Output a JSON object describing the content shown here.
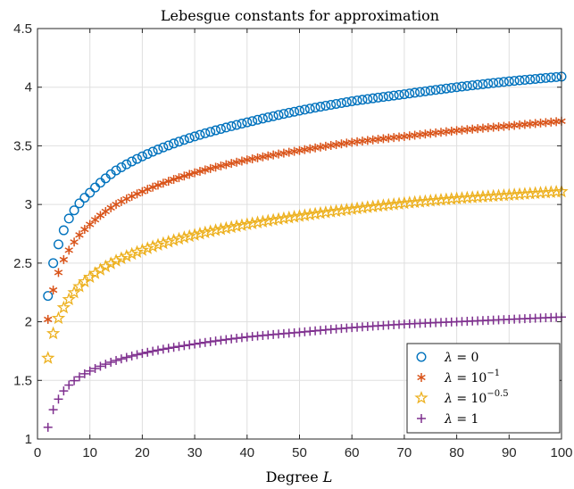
{
  "chart_data": {
    "type": "scatter",
    "title": "Lebesgue constants for approximation",
    "xlabel_prefix": "Degree ",
    "xlabel_var": "L",
    "ylabel": "",
    "xlim": [
      0,
      100
    ],
    "ylim": [
      1,
      4.5
    ],
    "xticks": [
      0,
      10,
      20,
      30,
      40,
      50,
      60,
      70,
      80,
      90,
      100
    ],
    "yticks": [
      1,
      1.5,
      2,
      2.5,
      3,
      3.5,
      4,
      4.5
    ],
    "ytick_labels": [
      "1",
      "1.5",
      "2",
      "2.5",
      "3",
      "3.5",
      "4",
      "4.5"
    ],
    "grid": true,
    "legend_position": "lower-right",
    "x_start": 2,
    "x_end": 100,
    "x_step": 1,
    "series": [
      {
        "legend_lambda": "λ",
        "legend_eq": " = 0",
        "legend_sup": "",
        "color": "#0072BD",
        "marker": "circle",
        "anchor_x": [
          2,
          3,
          4,
          5,
          6,
          8,
          10,
          15,
          20,
          30,
          40,
          50,
          60,
          70,
          80,
          90,
          100
        ],
        "anchor_y": [
          2.22,
          2.5,
          2.66,
          2.78,
          2.88,
          3.01,
          3.1,
          3.29,
          3.41,
          3.58,
          3.7,
          3.8,
          3.88,
          3.94,
          4.0,
          4.05,
          4.09
        ]
      },
      {
        "legend_lambda": "λ",
        "legend_eq": " = 10",
        "legend_sup": "−1",
        "color": "#D95319",
        "marker": "asterisk",
        "anchor_x": [
          2,
          3,
          4,
          5,
          6,
          8,
          10,
          15,
          20,
          30,
          40,
          50,
          60,
          70,
          80,
          90,
          100
        ],
        "anchor_y": [
          2.02,
          2.27,
          2.42,
          2.53,
          2.61,
          2.74,
          2.83,
          3.0,
          3.11,
          3.27,
          3.38,
          3.46,
          3.53,
          3.58,
          3.63,
          3.67,
          3.71
        ]
      },
      {
        "legend_lambda": "λ",
        "legend_eq": " = 10",
        "legend_sup": "−0.5",
        "color": "#EDB120",
        "marker": "star",
        "anchor_x": [
          2,
          3,
          4,
          5,
          6,
          8,
          10,
          15,
          20,
          30,
          40,
          50,
          60,
          70,
          80,
          90,
          100
        ],
        "anchor_y": [
          1.69,
          1.9,
          2.03,
          2.12,
          2.19,
          2.3,
          2.38,
          2.52,
          2.61,
          2.74,
          2.83,
          2.9,
          2.96,
          3.01,
          3.05,
          3.08,
          3.11
        ]
      },
      {
        "legend_lambda": "λ",
        "legend_eq": " = 1",
        "legend_sup": "",
        "color": "#7E2F8E",
        "marker": "plus",
        "anchor_x": [
          2,
          3,
          4,
          5,
          6,
          8,
          10,
          15,
          20,
          30,
          40,
          50,
          60,
          70,
          80,
          90,
          100
        ],
        "anchor_y": [
          1.1,
          1.25,
          1.34,
          1.41,
          1.46,
          1.53,
          1.58,
          1.67,
          1.73,
          1.81,
          1.87,
          1.91,
          1.95,
          1.98,
          2.0,
          2.02,
          2.04
        ]
      }
    ]
  }
}
